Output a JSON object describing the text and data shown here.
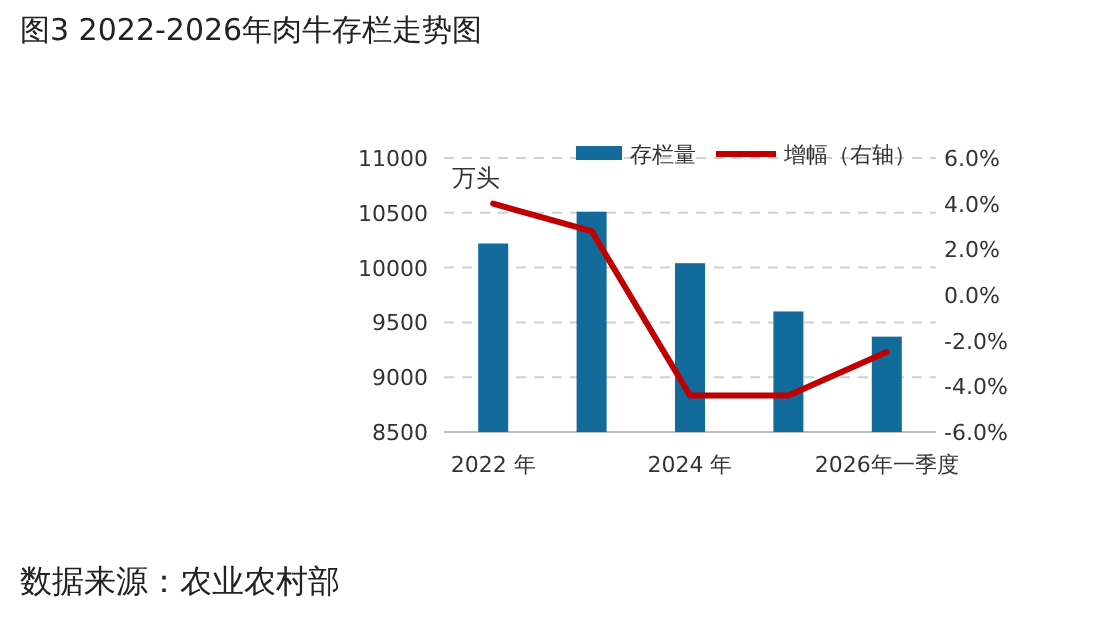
{
  "chart_data": {
    "type": "bar",
    "title": "图3 2022-2026年肉牛存栏走势图",
    "categories": [
      "2022 年",
      null,
      "2024 年",
      null,
      "2026年一季度"
    ],
    "series": [
      {
        "name": "存栏量",
        "color": "#126b9b",
        "values": [
          10220,
          10510,
          10040,
          9600,
          9370
        ]
      },
      {
        "name": "增幅（右轴）",
        "type": "line",
        "axis": "y2",
        "color": "#c00000",
        "values": [
          4.0,
          2.8,
          -4.4,
          -4.4,
          -2.5
        ]
      }
    ],
    "ylabel": "万头",
    "ylim": [
      8500,
      11000
    ],
    "yticks": [
      8500,
      9000,
      9500,
      10000,
      10500,
      11000
    ],
    "y2lim": [
      -6,
      6
    ],
    "y2ticks": [
      {
        "value": -6,
        "label": "-6.0%"
      },
      {
        "value": -4,
        "label": "-4.0%"
      },
      {
        "value": -2,
        "label": "-2.0%"
      },
      {
        "value": 0,
        "label": "0.0%"
      },
      {
        "value": 2,
        "label": "2.0%"
      },
      {
        "value": 4,
        "label": "4.0%"
      },
      {
        "value": 6,
        "label": "6.0%"
      }
    ],
    "grid": "y",
    "legend": "top",
    "annotations": [
      "数据来源：农业农村部"
    ]
  }
}
